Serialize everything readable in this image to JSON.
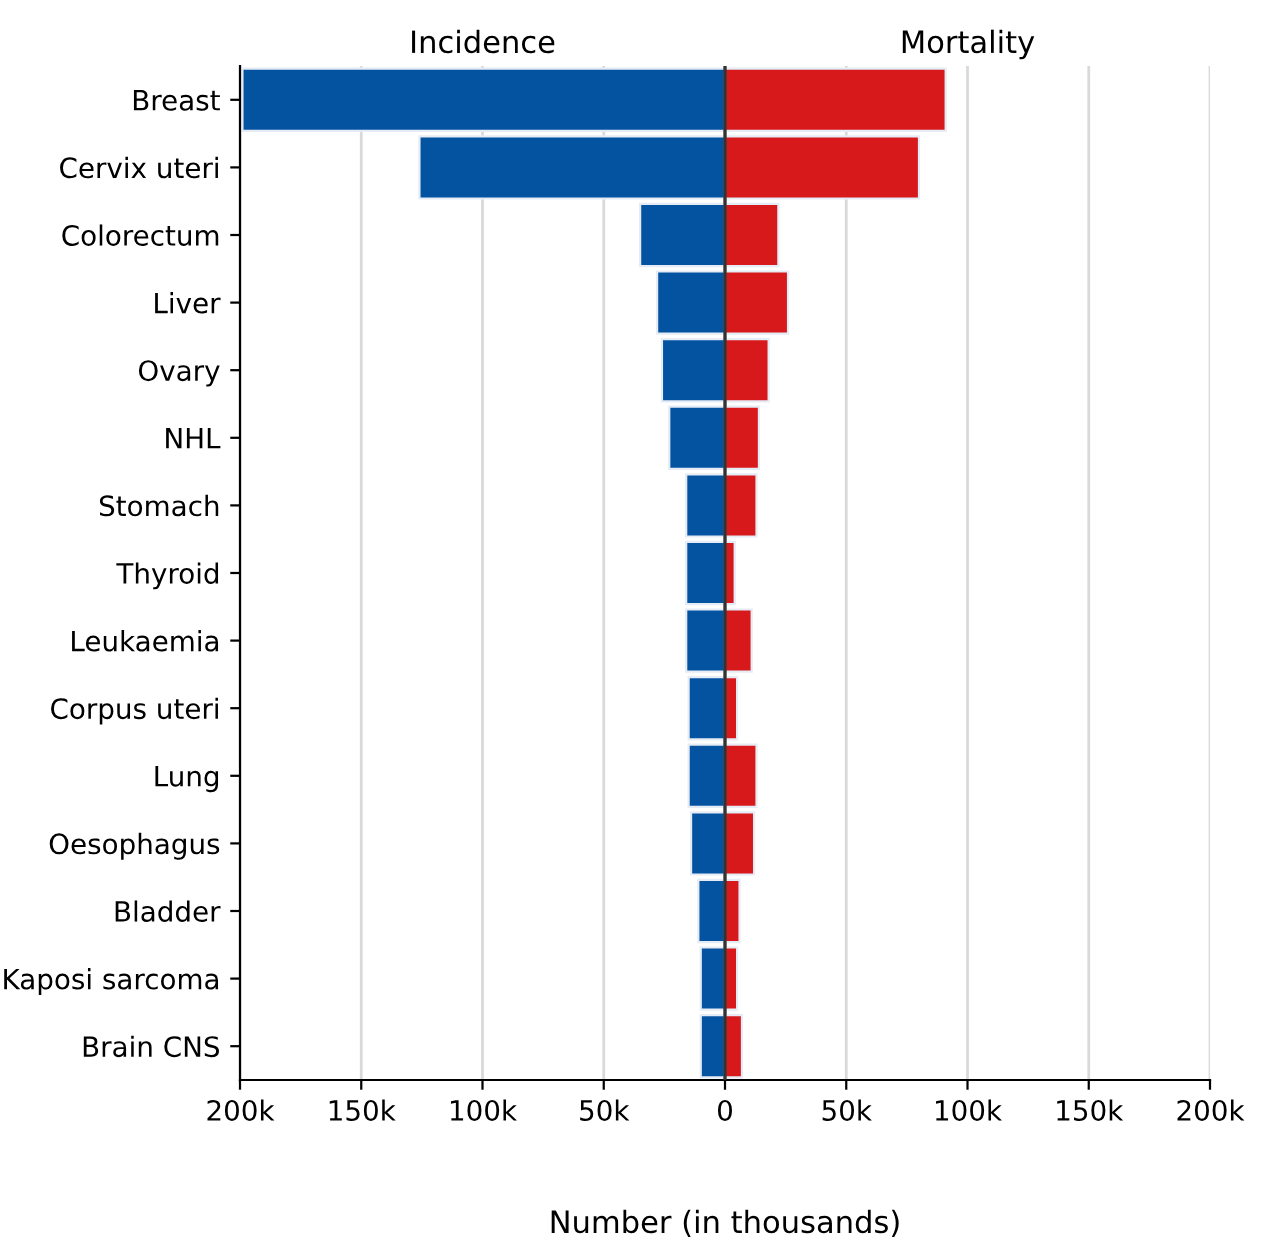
{
  "chart_data": {
    "type": "bar",
    "orientation": "horizontal",
    "stacked": true,
    "categories": [
      "Breast",
      "Cervix uteri",
      "Colorectum",
      "Liver",
      "Ovary",
      "NHL",
      "Stomach",
      "Thyroid",
      "Leukaemia",
      "Corpus uteri",
      "Lung",
      "Oesophagus",
      "Bladder",
      "Kaposi sarcoma",
      "Brain CNS"
    ],
    "series": [
      {
        "name": "Incidence",
        "color": "#0453a0",
        "values": [
          -199000,
          -126000,
          -35000,
          -28000,
          -26000,
          -23000,
          -16000,
          -16000,
          -16000,
          -15000,
          -15000,
          -14000,
          -11000,
          -10000,
          -10000
        ]
      },
      {
        "name": "Mortality",
        "color": "#d7191c",
        "values": [
          91000,
          80000,
          22000,
          26000,
          18000,
          14000,
          13000,
          4000,
          11000,
          5000,
          13000,
          12000,
          6000,
          5000,
          7000
        ]
      }
    ],
    "xlim": [
      -200000,
      200000
    ],
    "xticks": [
      {
        "value": -200000,
        "label": "200k"
      },
      {
        "value": -150000,
        "label": "150k"
      },
      {
        "value": -100000,
        "label": "100k"
      },
      {
        "value": -50000,
        "label": "50k"
      },
      0,
      {
        "value": 50000,
        "label": "50k"
      },
      {
        "value": 100000,
        "label": "100k"
      },
      {
        "value": 150000,
        "label": "150k"
      },
      {
        "value": 200000,
        "label": "200k"
      }
    ],
    "xlabel": "Number (in thousands)",
    "grid": "x",
    "legend": false,
    "ref_lines": [
      {
        "axis": "x",
        "value": 0,
        "color": "#333333"
      }
    ]
  }
}
